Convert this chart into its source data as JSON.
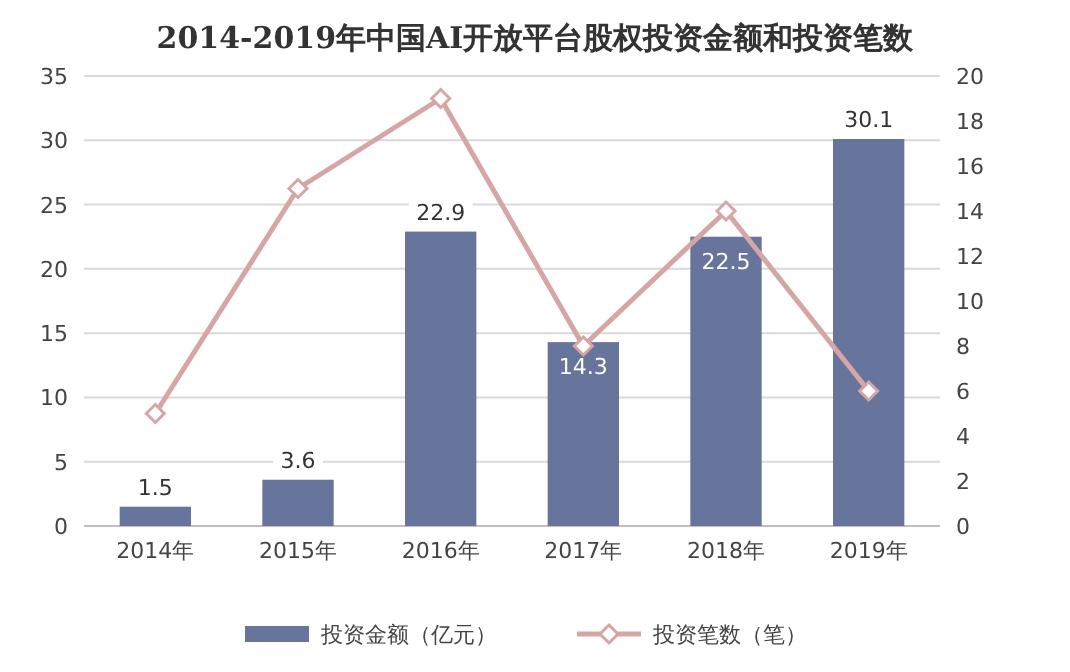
{
  "chart_data": {
    "type": "bar",
    "title": "2014-2019年中国AI开放平台股权投资金额和投资笔数",
    "categories": [
      "2014年",
      "2015年",
      "2016年",
      "2017年",
      "2018年",
      "2019年"
    ],
    "series": [
      {
        "name": "投资金额（亿元）",
        "color": "#67749b",
        "values": [
          1.5,
          3.6,
          22.9,
          14.3,
          22.5,
          30.1
        ],
        "value_labels": [
          "1.5",
          "3.6",
          "22.9",
          "14.3",
          "22.5",
          "30.1"
        ]
      },
      {
        "name": "投资笔数（笔）",
        "type": "line",
        "axis": "y2",
        "color": "#d6a6a6",
        "marker": "diamond",
        "values": [
          5,
          15,
          19,
          8,
          14,
          6
        ]
      }
    ],
    "ylim": [
      0,
      35
    ],
    "yticks": [
      0,
      5,
      10,
      15,
      20,
      25,
      30,
      35
    ],
    "y2lim": [
      0,
      20
    ],
    "y2ticks": [
      0,
      2,
      4,
      6,
      8,
      10,
      12,
      14,
      16,
      18,
      20
    ],
    "grid": "y",
    "legend": "bottom"
  }
}
